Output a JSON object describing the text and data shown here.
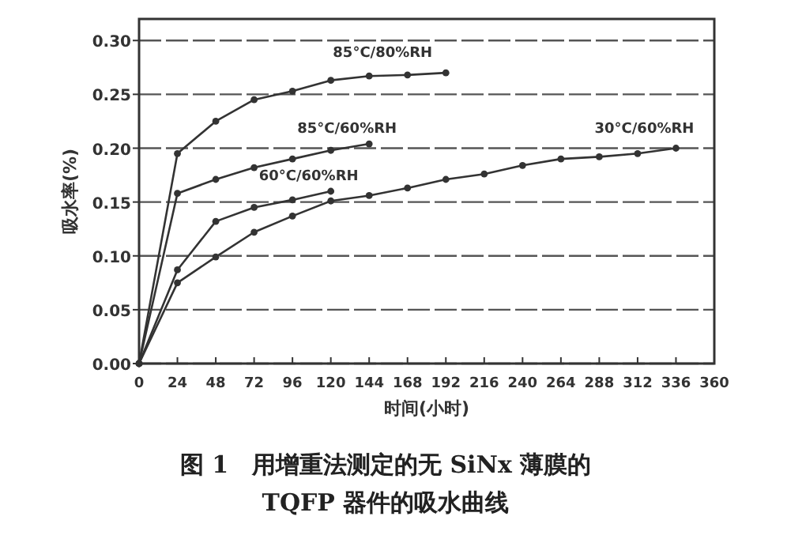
{
  "chart_data": {
    "type": "line",
    "title": "图 1　用增重法测定的无 SiNx 薄膜的 TQFP 器件的吸水曲线",
    "xlabel": "时间(小时)",
    "ylabel": "吸水率(%)",
    "xlim": [
      0,
      360
    ],
    "xticks": [
      0,
      24,
      48,
      72,
      96,
      120,
      144,
      168,
      192,
      216,
      240,
      264,
      288,
      312,
      336,
      360
    ],
    "ylim": [
      0,
      0.32
    ],
    "yticks": [
      {
        "value": 0,
        "label": "0.00"
      },
      {
        "value": 0.05,
        "label": "0.05"
      },
      {
        "value": 0.1,
        "label": "0.10"
      },
      {
        "value": 0.15,
        "label": "0.15"
      },
      {
        "value": 0.2,
        "label": "0.20"
      },
      {
        "value": 0.25,
        "label": "0.25"
      },
      {
        "value": 0.3,
        "label": "0.30"
      }
    ],
    "grid": "y",
    "marker": "circle",
    "line_style": "solid",
    "series": [
      {
        "name": "85°C/80%RH",
        "color": "#333333",
        "x": [
          0,
          24,
          48,
          72,
          96,
          120,
          144,
          168,
          192
        ],
        "values": [
          0,
          0.195,
          0.225,
          0.245,
          0.253,
          0.263,
          0.267,
          0.268,
          0.27
        ]
      },
      {
        "name": "85°C/60%RH",
        "color": "#333333",
        "x": [
          0,
          24,
          48,
          72,
          96,
          120,
          144
        ],
        "values": [
          0,
          0.158,
          0.171,
          0.182,
          0.19,
          0.198,
          0.204
        ]
      },
      {
        "name": "60°C/60%RH",
        "color": "#333333",
        "x": [
          0,
          24,
          48,
          72,
          96,
          120
        ],
        "values": [
          0,
          0.087,
          0.132,
          0.145,
          0.152,
          0.16
        ]
      },
      {
        "name": "30°C/60%RH",
        "color": "#333333",
        "x": [
          0,
          24,
          48,
          72,
          96,
          120,
          144,
          168,
          192,
          216,
          240,
          264,
          288,
          312,
          336
        ],
        "values": [
          0,
          0.075,
          0.099,
          0.122,
          0.137,
          0.151,
          0.156,
          0.163,
          0.171,
          0.176,
          0.184,
          0.19,
          0.192,
          0.195,
          0.2
        ]
      }
    ]
  }
}
